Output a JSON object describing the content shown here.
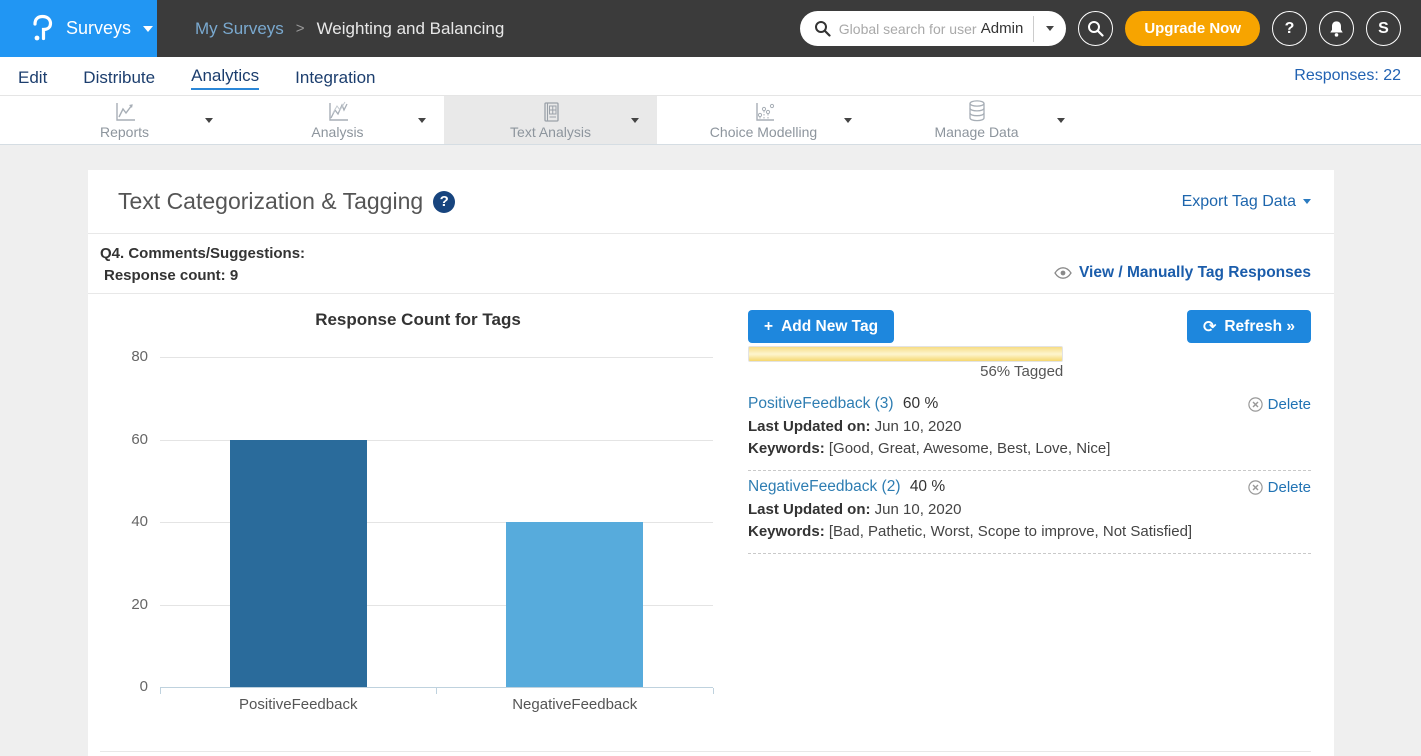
{
  "header": {
    "product": "Surveys",
    "breadcrumb_parent": "My Surveys",
    "breadcrumb_sep": ">",
    "breadcrumb_current": "Weighting and Balancing",
    "search_placeholder": "Global search for user",
    "search_scope": "Admin",
    "upgrade_label": "Upgrade Now",
    "help_glyph": "?",
    "avatar_initial": "S"
  },
  "nav": {
    "items": [
      "Edit",
      "Distribute",
      "Analytics",
      "Integration"
    ],
    "active": "Analytics",
    "responses_label": "Responses: 22"
  },
  "toolbar": {
    "tabs": [
      {
        "label": "Reports"
      },
      {
        "label": "Analysis"
      },
      {
        "label": "Text Analysis"
      },
      {
        "label": "Choice Modelling"
      },
      {
        "label": "Manage Data"
      }
    ],
    "active": "Text Analysis"
  },
  "main": {
    "title": "Text Categorization & Tagging",
    "help_glyph": "?",
    "export_label": "Export Tag Data",
    "question_label": "Q4. Comments/Suggestions:",
    "response_count_label": "Response count: 9",
    "view_tag_label": "View / Manually Tag Responses",
    "add_tag_label": "Add New Tag",
    "add_tag_plus": "+",
    "refresh_label": "Refresh »",
    "tagged_percent": 56,
    "tagged_label": "56% Tagged",
    "tags": [
      {
        "name": "PositiveFeedback (3)",
        "percent": "60 %",
        "updated_label": "Last Updated on:",
        "updated_value": "Jun 10, 2020",
        "keywords_label": "Keywords:",
        "keywords_value": "[Good, Great, Awesome, Best, Love, Nice]",
        "delete_label": "Delete"
      },
      {
        "name": "NegativeFeedback (2)",
        "percent": "40 %",
        "updated_label": "Last Updated on:",
        "updated_value": "Jun 10, 2020",
        "keywords_label": "Keywords:",
        "keywords_value": "[Bad, Pathetic, Worst, Scope to improve, Not Satisfied]",
        "delete_label": "Delete"
      }
    ]
  },
  "chart_data": {
    "type": "bar",
    "title": "Response Count for Tags",
    "categories": [
      "PositiveFeedback",
      "NegativeFeedback"
    ],
    "values": [
      60,
      40
    ],
    "colors": [
      "#2a6b9b",
      "#57abdc"
    ],
    "ylim": [
      0,
      80
    ],
    "yticks": [
      80,
      60,
      40,
      20,
      0
    ],
    "xlabel": "",
    "ylabel": "",
    "grid": true,
    "legend": false
  },
  "colors": {
    "brand_blue": "#2196f3",
    "header_dark": "#3b3b3b",
    "upgrade_orange": "#f7a400",
    "button_blue": "#1e87dd",
    "link_blue": "#1b5dab",
    "progress_yellow": "#f5d76e",
    "bar_dark_blue": "#2a6b9b",
    "bar_light_blue": "#57abdc"
  }
}
